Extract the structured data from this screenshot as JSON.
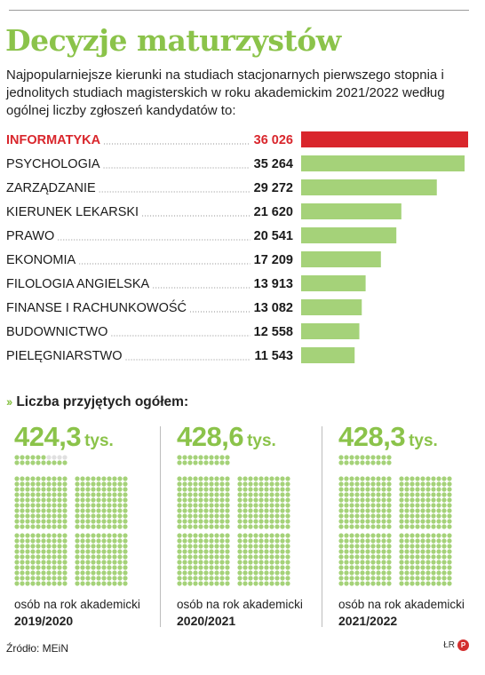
{
  "title": "Decyzje maturzystów",
  "subtitle": "Najpopularniejsze kierunki na studiach stacjonarnych pierwszego stopnia i jednolitych studiach magisterskich w roku akademickim 2021/2022 według ogólnej liczby zgłoszeń kandydatów to:",
  "section_title": "Liczba przyjętych ogółem:",
  "caption": "osób na rok akademicki",
  "source": "Źródło: MEiN",
  "credit": "ŁR",
  "colors": {
    "accent": "#8bc34a",
    "bar": "#a5d279",
    "highlight": "#d9262c",
    "dot_empty": "#e0e0e0"
  },
  "chart_data": [
    {
      "type": "bar",
      "orientation": "horizontal",
      "categories": [
        "INFORMATYKA",
        "PSYCHOLOGIA",
        "ZARZĄDZANIE",
        "KIERUNEK LEKARSKI",
        "PRAWO",
        "EKONOMIA",
        "FILOLOGIA ANGIELSKA",
        "FINANSE I RACHUNKOWOŚĆ",
        "BUDOWNICTWO",
        "PIELĘGNIARSTWO"
      ],
      "values": [
        36026,
        35264,
        29272,
        21620,
        20541,
        17209,
        13913,
        13082,
        12558,
        11543
      ],
      "value_labels": [
        "36 026",
        "35 264",
        "29 272",
        "21 620",
        "20 541",
        "17 209",
        "13 913",
        "13 082",
        "12 558",
        "11 543"
      ],
      "highlight_index": 0
    },
    {
      "type": "pictogram",
      "series": [
        {
          "year": "2019/2020",
          "value": 424.3,
          "label": "424,3",
          "unit": "tys."
        },
        {
          "year": "2020/2021",
          "value": 428.6,
          "label": "428,6",
          "unit": "tys."
        },
        {
          "year": "2021/2022",
          "value": 428.3,
          "label": "428,3",
          "unit": "tys."
        }
      ]
    }
  ]
}
